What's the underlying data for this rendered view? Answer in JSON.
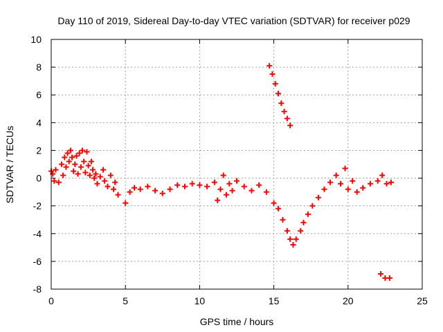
{
  "chart_data": {
    "type": "scatter",
    "title": "Day 110 of 2019, Sidereal Day-to-day VTEC variation (SDTVAR) for receiver p029",
    "xlabel": "GPS time / hours",
    "ylabel": "SDTVAR / TECUs",
    "xlim": [
      0,
      25
    ],
    "ylim": [
      -8,
      10
    ],
    "xticks": [
      "0",
      "5",
      "10",
      "15",
      "20",
      "25"
    ],
    "yticks": [
      "-8",
      "-6",
      "-4",
      "-2",
      "0",
      "2",
      "4",
      "6",
      "8",
      "10"
    ],
    "grid": true,
    "marker": "+",
    "series": [
      {
        "name": "p029",
        "color": "#ff0000",
        "x": [
          0.0,
          0.1,
          0.2,
          0.3,
          0.5,
          0.7,
          0.8,
          0.9,
          1.0,
          1.1,
          1.2,
          1.3,
          1.4,
          1.5,
          1.6,
          1.7,
          1.8,
          1.9,
          2.0,
          2.1,
          2.2,
          2.3,
          2.4,
          2.5,
          2.6,
          2.7,
          2.8,
          2.9,
          3.0,
          3.1,
          3.3,
          3.5,
          3.6,
          3.8,
          4.0,
          4.2,
          4.3,
          4.5,
          5.0,
          5.3,
          5.6,
          6.0,
          6.5,
          7.0,
          7.5,
          8.0,
          8.5,
          9.0,
          9.5,
          10.0,
          10.5,
          11.0,
          11.2,
          11.4,
          11.6,
          11.8,
          12.0,
          12.2,
          12.5,
          13.0,
          13.5,
          14.0,
          14.5,
          15.0,
          15.3,
          15.6,
          15.9,
          16.1,
          16.3,
          16.5,
          16.8,
          17.0,
          17.3,
          17.6,
          18.0,
          18.4,
          18.8,
          19.2,
          19.5,
          19.8,
          20.0,
          20.3,
          20.6,
          21.0,
          21.5,
          22.0,
          22.3,
          22.6,
          22.9,
          14.7,
          14.9,
          15.1,
          15.3,
          15.5,
          15.7,
          15.9,
          16.1,
          22.2,
          22.5,
          22.8
        ],
        "y": [
          0.5,
          0.3,
          -0.2,
          0.6,
          -0.3,
          1.0,
          0.2,
          1.5,
          0.8,
          1.8,
          1.2,
          2.0,
          1.5,
          0.5,
          1.0,
          1.6,
          0.3,
          1.8,
          0.8,
          2.0,
          1.2,
          0.4,
          1.9,
          0.9,
          0.2,
          1.2,
          0.6,
          0.0,
          0.3,
          -0.4,
          0.1,
          0.6,
          -0.2,
          -0.6,
          0.2,
          -0.8,
          -0.3,
          -1.2,
          -1.8,
          -1.0,
          -0.7,
          -0.8,
          -0.6,
          -0.9,
          -1.1,
          -0.8,
          -0.5,
          -0.6,
          -0.4,
          -0.5,
          -0.6,
          -0.3,
          -1.6,
          -0.8,
          0.2,
          -1.2,
          -0.4,
          -0.9,
          -0.2,
          -0.6,
          -0.9,
          -0.5,
          -1.0,
          -1.8,
          -2.2,
          -3.0,
          -3.8,
          -4.4,
          -4.8,
          -4.4,
          -3.8,
          -3.2,
          -2.6,
          -2.0,
          -1.4,
          -0.8,
          -0.3,
          0.2,
          -0.4,
          0.7,
          -0.8,
          -0.2,
          -1.0,
          -0.7,
          -0.4,
          -0.2,
          0.2,
          -0.4,
          -0.3,
          8.1,
          7.5,
          6.8,
          6.1,
          5.4,
          4.8,
          4.3,
          3.8,
          -6.9,
          -7.2,
          -7.2
        ]
      }
    ]
  }
}
